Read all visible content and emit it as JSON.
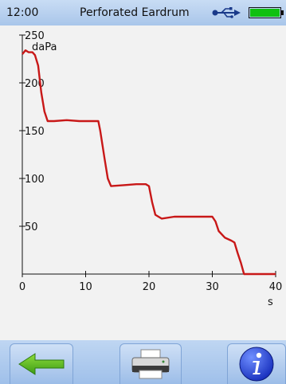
{
  "status_bar": {
    "time": "12:00",
    "title": "Perforated Eardrum",
    "icons": [
      "usb-icon",
      "battery-icon"
    ],
    "battery_color": "#10c010"
  },
  "toolbar": {
    "buttons": [
      {
        "name": "back-button",
        "icon": "left-arrow-icon"
      },
      {
        "name": "print-button",
        "icon": "printer-icon"
      },
      {
        "name": "info-button",
        "icon": "info-icon"
      }
    ]
  },
  "chart_data": {
    "type": "line",
    "ylabel_unit": "daPa",
    "xlabel_unit": "s",
    "xlim": [
      0,
      40
    ],
    "ylim": [
      0,
      250
    ],
    "x_ticks": [
      "0",
      "10",
      "20",
      "30",
      "40"
    ],
    "y_ticks": [
      "250",
      "200",
      "150",
      "100",
      "50"
    ],
    "line_color": "#c81818",
    "series": [
      {
        "x": [
          0,
          0.5,
          1.0,
          1.6,
          2.0,
          2.5,
          3.0,
          3.5,
          4.0,
          5.0,
          7.0,
          9.0,
          11.0,
          12.0,
          12.3,
          13.0,
          13.5,
          14.0,
          16.0,
          18.0,
          19.5,
          20.0,
          20.5,
          21.0,
          22.0,
          24.0,
          26.0,
          28.0,
          30.0,
          30.5,
          31.0,
          32.0,
          33.0,
          33.5,
          34.0,
          34.5,
          35.0,
          37.0,
          40.0
        ],
        "y": [
          230,
          234,
          232,
          232,
          229,
          218,
          190,
          170,
          160,
          160,
          161,
          160,
          160,
          160,
          150,
          120,
          100,
          92,
          93,
          94,
          94,
          92,
          75,
          62,
          58,
          60,
          60,
          60,
          60,
          55,
          45,
          38,
          35,
          33,
          22,
          12,
          0,
          0,
          0
        ]
      }
    ]
  }
}
